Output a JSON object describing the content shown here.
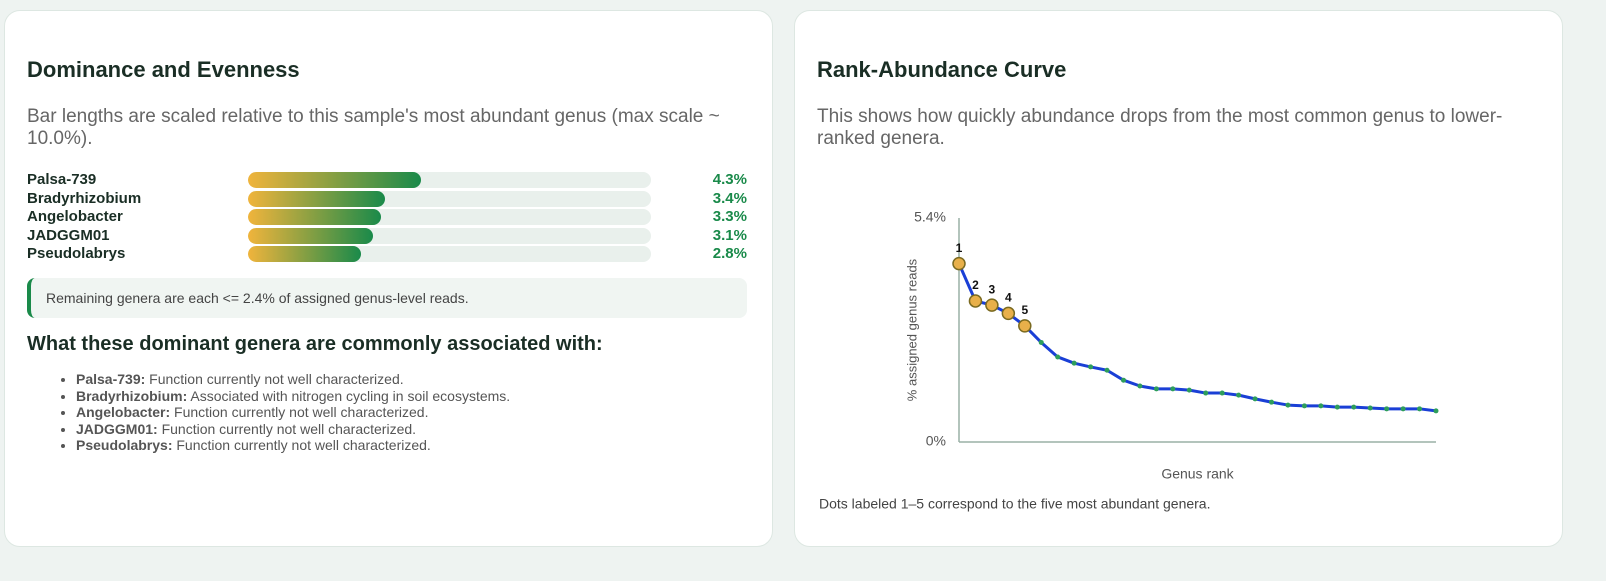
{
  "chart_data": [
    {
      "type": "bar",
      "title": "Dominance and Evenness",
      "subtitle": "Bar lengths are scaled relative to this sample's most abundant genus (max scale ~ 10.0%).",
      "categories": [
        "Palsa-739",
        "Bradyrhizobium",
        "Angelobacter",
        "JADGGM01",
        "Pseudolabrys"
      ],
      "values": [
        4.3,
        3.4,
        3.3,
        3.1,
        2.8
      ],
      "value_labels": [
        "4.3%",
        "3.4%",
        "3.3%",
        "3.1%",
        "2.8%"
      ],
      "xlim": [
        0,
        10
      ],
      "note": "Remaining genera are each <= 2.4% of assigned genus-level reads.",
      "associations": {
        "heading": "What these dominant genera are commonly associated with:",
        "items": [
          {
            "name": "Palsa-739:",
            "text": "Function currently not well characterized."
          },
          {
            "name": "Bradyrhizobium:",
            "text": "Associated with nitrogen cycling in soil ecosystems."
          },
          {
            "name": "Angelobacter:",
            "text": "Function currently not well characterized."
          },
          {
            "name": "JADGGM01:",
            "text": "Function currently not well characterized."
          },
          {
            "name": "Pseudolabrys:",
            "text": "Function currently not well characterized."
          }
        ]
      }
    },
    {
      "type": "line",
      "title": "Rank-Abundance Curve",
      "subtitle": "This shows how quickly abundance drops from the most common genus to lower-ranked genera.",
      "xlabel": "Genus rank",
      "ylabel": "% assigned genus reads",
      "note": "Dots labeled 1–5 correspond to the five most abundant genera.",
      "x": [
        1,
        2,
        3,
        4,
        5,
        6,
        7,
        8,
        9,
        10,
        11,
        12,
        13,
        14,
        15,
        16,
        17,
        18,
        19,
        20,
        21,
        22,
        23,
        24,
        25,
        26,
        27,
        28,
        29,
        30
      ],
      "values": [
        4.3,
        3.4,
        3.3,
        3.1,
        2.8,
        2.4,
        2.05,
        1.9,
        1.81,
        1.73,
        1.49,
        1.35,
        1.28,
        1.28,
        1.25,
        1.18,
        1.18,
        1.13,
        1.04,
        0.96,
        0.89,
        0.87,
        0.87,
        0.84,
        0.84,
        0.82,
        0.8,
        0.8,
        0.8,
        0.75
      ],
      "marker_labels": [
        1,
        2,
        3,
        4,
        5
      ],
      "xlim": [
        1,
        30
      ],
      "ylim": [
        0,
        5.4
      ],
      "yticks": [
        {
          "value": 0,
          "label": "0%"
        },
        {
          "value": 5.4,
          "label": "5.4%"
        }
      ],
      "color": "#1a3fd6",
      "marker_color": "#2e9e5b",
      "highlight_color": "#e8b04a"
    }
  ]
}
